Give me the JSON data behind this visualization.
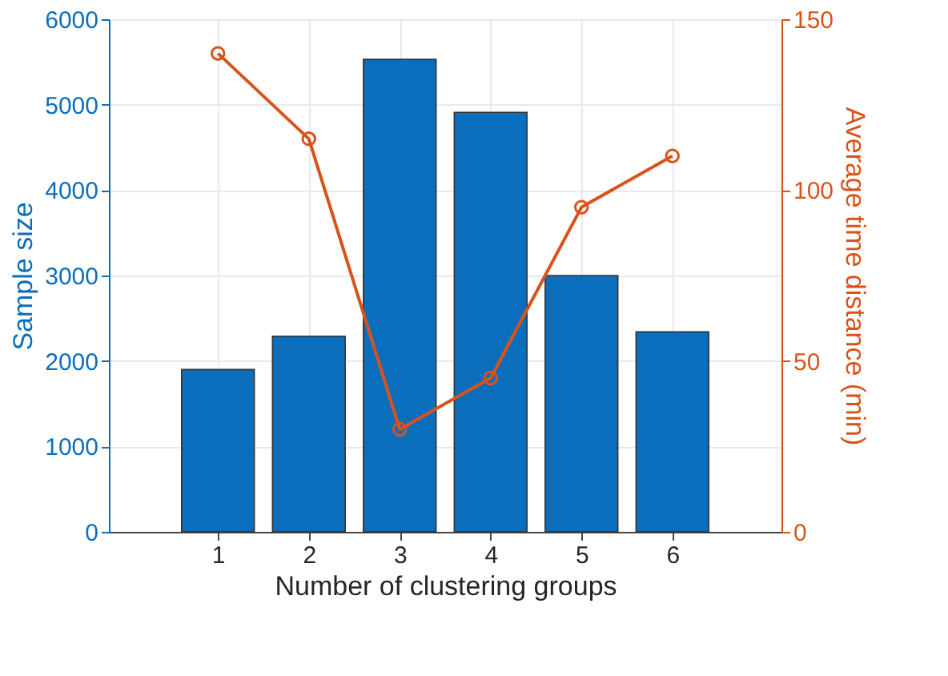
{
  "chart_data": {
    "type": "bar",
    "x": [
      1,
      2,
      3,
      4,
      5,
      6
    ],
    "xlabel": "Number of clustering groups",
    "ylabel": "Sample size",
    "y2label": "Average time distance (min)",
    "xlim": [
      -0.2,
      7.2
    ],
    "xticks": [
      1,
      2,
      3,
      4,
      5,
      6
    ],
    "ylim": [
      0,
      6000
    ],
    "yticks": [
      0,
      1000,
      2000,
      3000,
      4000,
      5000,
      6000
    ],
    "y2lim": [
      0,
      150
    ],
    "y2ticks": [
      0,
      50,
      100,
      150
    ],
    "grid": true,
    "series": [
      {
        "color": "#0a6ebd",
        "values": [
          1900,
          2290,
          5530,
          4910,
          3000,
          2340
        ]
      },
      {
        "type": "line",
        "axis": "y2",
        "color": "#d95319",
        "marker": "circle",
        "values": [
          140,
          115,
          30,
          45,
          95,
          110
        ]
      }
    ]
  }
}
